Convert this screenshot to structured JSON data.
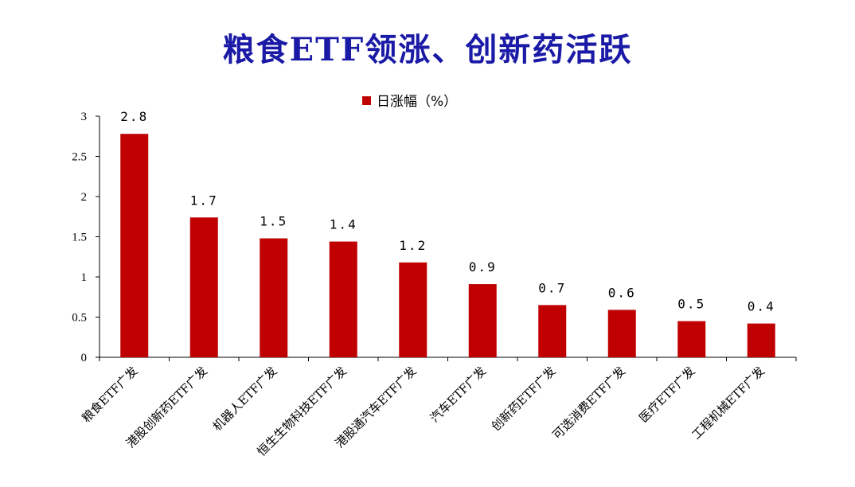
{
  "title": "粮食ETF领涨、创新药活跃",
  "chart_data": {
    "type": "bar",
    "categories": [
      "粮食ETF广发",
      "港股创新药ETF广发",
      "机器人ETF广发",
      "恒生生物科技ETF广发",
      "港股通汽车ETF广发",
      "汽车ETF广发",
      "创新药ETF广发",
      "可选消费ETF广发",
      "医疗ETF广发",
      "工程机械ETF广发"
    ],
    "series": [
      {
        "name": "日涨幅（%）",
        "values": [
          2.78,
          1.74,
          1.48,
          1.44,
          1.18,
          0.91,
          0.65,
          0.59,
          0.45,
          0.42
        ],
        "labels": [
          "2.8",
          "1.7",
          "1.5",
          "1.4",
          "1.2",
          "0.9",
          "0.7",
          "0.6",
          "0.5",
          "0.4"
        ]
      }
    ],
    "ylim": [
      0,
      3
    ],
    "yticks": [
      "0",
      "0.5",
      "1",
      "1.5",
      "2",
      "2.5",
      "3"
    ],
    "ytick_values": [
      0,
      0.5,
      1,
      1.5,
      2,
      2.5,
      3
    ],
    "legend_position": "top-center",
    "grid": false,
    "colors": {
      "bar": "#c00000",
      "title": "#1a1aa6"
    }
  }
}
